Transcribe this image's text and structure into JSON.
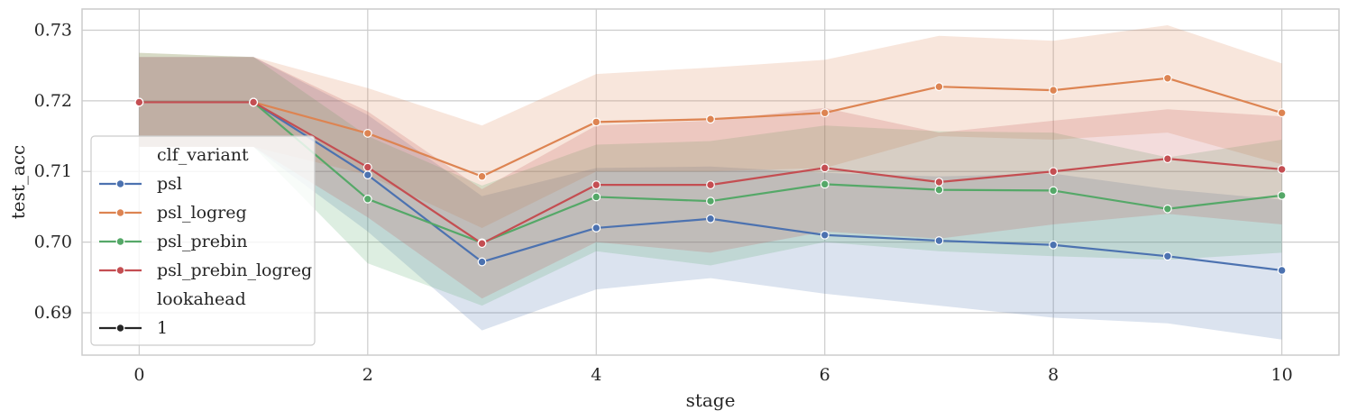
{
  "chart_data": {
    "type": "line",
    "xlabel": "stage",
    "ylabel": "test_acc",
    "xlim": [
      -0.5,
      10.5
    ],
    "ylim": [
      0.684,
      0.733
    ],
    "xticks": [
      0,
      2,
      4,
      6,
      8,
      10
    ],
    "yticks": [
      0.69,
      0.7,
      0.71,
      0.72,
      0.73
    ],
    "ytick_labels": [
      "0.69",
      "0.70",
      "0.71",
      "0.72",
      "0.73"
    ],
    "grid": true,
    "legend_position": "left",
    "x": [
      0,
      1,
      2,
      3,
      4,
      5,
      6,
      7,
      8,
      9,
      10
    ],
    "series": [
      {
        "name": "psl",
        "color": "#4c72b0",
        "values": [
          0.7198,
          0.7198,
          0.7095,
          0.6972,
          0.702,
          0.7033,
          0.701,
          0.7002,
          0.6996,
          0.698,
          0.696
        ],
        "lower": [
          0.7135,
          0.7135,
          0.7015,
          0.6875,
          0.6933,
          0.6949,
          0.6927,
          0.691,
          0.6893,
          0.6885,
          0.6862
        ],
        "upper": [
          0.7262,
          0.7262,
          0.718,
          0.7065,
          0.7105,
          0.7107,
          0.7098,
          0.7093,
          0.7097,
          0.7075,
          0.706
        ]
      },
      {
        "name": "psl_logreg",
        "color": "#dd8452",
        "values": [
          0.7198,
          0.7198,
          0.7154,
          0.7093,
          0.717,
          0.7174,
          0.7183,
          0.722,
          0.7215,
          0.7232,
          0.7183
        ],
        "lower": [
          0.7135,
          0.7135,
          0.7095,
          0.702,
          0.71,
          0.71,
          0.7105,
          0.715,
          0.7145,
          0.7155,
          0.711
        ],
        "upper": [
          0.7268,
          0.7262,
          0.7218,
          0.7165,
          0.7238,
          0.7247,
          0.7258,
          0.7292,
          0.7285,
          0.7307,
          0.7253
        ]
      },
      {
        "name": "psl_prebin",
        "color": "#55a868",
        "values": [
          0.7198,
          0.7198,
          0.7061,
          0.6999,
          0.7064,
          0.7058,
          0.7082,
          0.7074,
          0.7073,
          0.7047,
          0.7066
        ],
        "lower": [
          0.7135,
          0.7135,
          0.697,
          0.691,
          0.6987,
          0.6967,
          0.7,
          0.6987,
          0.698,
          0.6975,
          0.6985
        ],
        "upper": [
          0.7268,
          0.7262,
          0.715,
          0.708,
          0.7138,
          0.7143,
          0.7165,
          0.7157,
          0.7155,
          0.712,
          0.7145
        ]
      },
      {
        "name": "psl_prebin_logreg",
        "color": "#c44e52",
        "values": [
          0.7198,
          0.7198,
          0.7106,
          0.6998,
          0.7081,
          0.7081,
          0.7105,
          0.7085,
          0.71,
          0.7118,
          0.7103
        ],
        "lower": [
          0.7135,
          0.7135,
          0.7035,
          0.692,
          0.7,
          0.6985,
          0.7015,
          0.7005,
          0.7025,
          0.704,
          0.7025
        ],
        "upper": [
          0.7262,
          0.7262,
          0.7185,
          0.7075,
          0.7165,
          0.7172,
          0.719,
          0.7155,
          0.7172,
          0.7188,
          0.7178
        ]
      }
    ],
    "legend": {
      "hue_title": "clf_variant",
      "entries": [
        "psl",
        "psl_logreg",
        "psl_prebin",
        "psl_prebin_logreg"
      ],
      "style_title": "lookahead",
      "style_entries": [
        "1"
      ],
      "style_color": "#262626"
    }
  }
}
